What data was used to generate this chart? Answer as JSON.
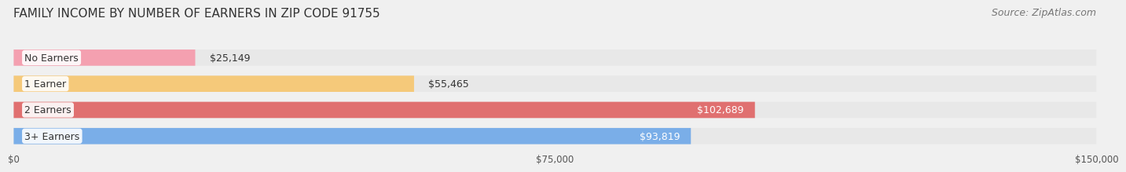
{
  "title": "FAMILY INCOME BY NUMBER OF EARNERS IN ZIP CODE 91755",
  "source": "Source: ZipAtlas.com",
  "categories": [
    "No Earners",
    "1 Earner",
    "2 Earners",
    "3+ Earners"
  ],
  "values": [
    25149,
    55465,
    102689,
    93819
  ],
  "bar_colors": [
    "#f4a0b0",
    "#f5c97a",
    "#e07070",
    "#7aaee8"
  ],
  "bar_edge_colors": [
    "#e8708a",
    "#e8a840",
    "#c85050",
    "#4a88d0"
  ],
  "label_colors": [
    "#555555",
    "#555555",
    "#ffffff",
    "#ffffff"
  ],
  "xlim": [
    0,
    150000
  ],
  "xticks": [
    0,
    75000,
    150000
  ],
  "xtick_labels": [
    "$0",
    "$75,000",
    "$150,000"
  ],
  "background_color": "#f0f0f0",
  "bar_bg_color": "#e8e8e8",
  "title_fontsize": 11,
  "source_fontsize": 9,
  "label_fontsize": 9,
  "value_fontsize": 9,
  "category_fontsize": 9
}
